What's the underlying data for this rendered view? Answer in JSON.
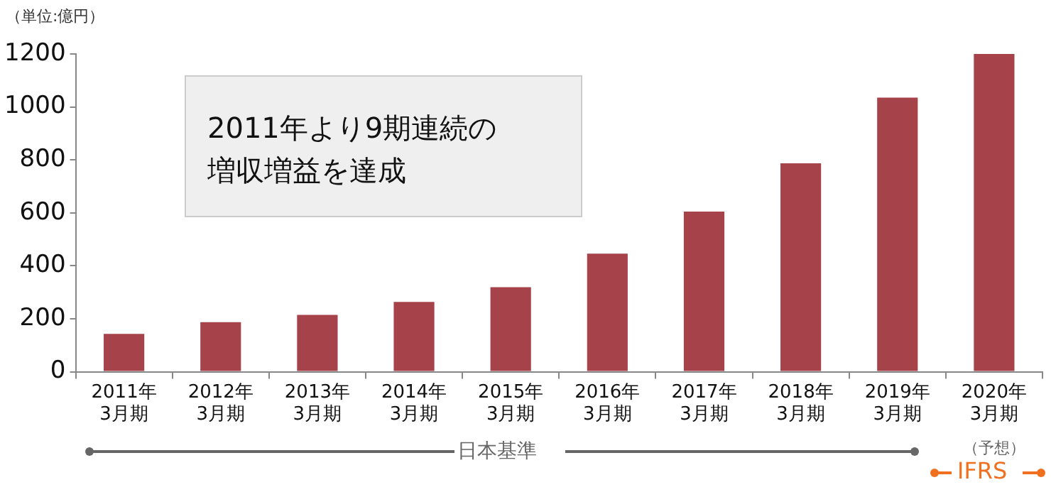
{
  "chart_data": {
    "type": "bar",
    "ylabel": "（単位:億円）",
    "categories": [
      "2011年\n3月期",
      "2012年\n3月期",
      "2013年\n3月期",
      "2014年\n3月期",
      "2015年\n3月期",
      "2016年\n3月期",
      "2017年\n3月期",
      "2018年\n3月期",
      "2019年\n3月期",
      "2020年\n3月期"
    ],
    "values": [
      143,
      187,
      215,
      264,
      319,
      446,
      605,
      787,
      1035,
      1200
    ],
    "color": "#a6434a",
    "ylim": [
      0,
      1200
    ],
    "yticks": [
      0,
      200,
      400,
      600,
      800,
      1000,
      1200
    ],
    "grid": false,
    "legend": false,
    "annotations": [
      "2011年より9期連続の増収増益を達成",
      "日本基準",
      "（予想）",
      "IFRS"
    ]
  }
}
